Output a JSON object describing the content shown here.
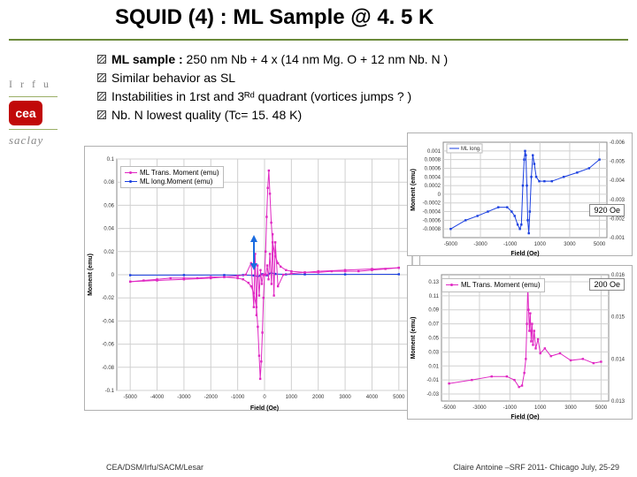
{
  "title": "SQUID (4) : ML Sample @ 4. 5 K",
  "bullets": [
    {
      "bold": "ML sample :",
      "rest": " 250 nm Nb + 4 x (14 nm Mg. O + 12 nm Nb. N )"
    },
    {
      "bold": "",
      "rest": "Similar behavior as SL"
    },
    {
      "bold": "",
      "rest": "Instabilities in 1rst and 3ᴿᵈ quadrant (vortices jumps ? )"
    },
    {
      "bold": "",
      "rest": "Nb. N lowest quality (Tc= 15. 48 K)"
    }
  ],
  "logos": {
    "irfu": "I r f u",
    "cea": "cea",
    "saclay": "saclay"
  },
  "footer": {
    "left": "CEA/DSM/Irfu/SACM/Lesar",
    "right": "Claire Antoine –SRF 2011- Chicago July, 25-29"
  },
  "main_chart": {
    "type": "line",
    "xlabel": "Field (Oe)",
    "ylabel": "Moment (emu)",
    "xlim": [
      -5500,
      5500
    ],
    "ylim": [
      -0.1,
      0.1
    ],
    "xticks": [
      -5000,
      -4000,
      -3000,
      -2000,
      -1000,
      0,
      1000,
      2000,
      3000,
      4000,
      5000
    ],
    "yticks": [
      -0.1,
      -0.08,
      -0.06,
      -0.04,
      -0.02,
      0,
      0.02,
      0.04,
      0.06,
      0.08,
      0.1
    ],
    "grid_color": "#d0d0d0",
    "legend": [
      {
        "label": "ML Trans. Moment (emu)",
        "color": "#e028c3"
      },
      {
        "label": "ML long.Moment (emu)",
        "color": "#1a3fe0"
      }
    ],
    "series": {
      "trans": {
        "color": "#e028c3",
        "marker": "square",
        "marker_size": 2,
        "data_out": [
          [
            -5000,
            -0.006
          ],
          [
            -4500,
            -0.005
          ],
          [
            -4000,
            -0.004
          ],
          [
            -3500,
            -0.003
          ],
          [
            -3000,
            -0.003
          ],
          [
            -2500,
            -0.003
          ],
          [
            -2000,
            -0.002
          ],
          [
            -1500,
            -0.002
          ],
          [
            -1000,
            -0.003
          ],
          [
            -800,
            -0.004
          ],
          [
            -600,
            -0.007
          ],
          [
            -500,
            -0.01
          ],
          [
            -400,
            -0.016
          ],
          [
            -300,
            -0.028
          ],
          [
            -250,
            -0.045
          ],
          [
            -200,
            -0.07
          ],
          [
            -160,
            -0.09
          ],
          [
            -120,
            -0.075
          ],
          [
            -80,
            -0.05
          ],
          [
            -40,
            -0.02
          ],
          [
            0,
            0
          ],
          [
            40,
            0.02
          ],
          [
            80,
            0.05
          ],
          [
            120,
            0.075
          ],
          [
            160,
            0.09
          ],
          [
            200,
            0.07
          ],
          [
            250,
            0.045
          ],
          [
            300,
            0.028
          ],
          [
            400,
            0.016
          ],
          [
            500,
            0.01
          ],
          [
            600,
            0.007
          ],
          [
            800,
            0.004
          ],
          [
            1000,
            0.003
          ],
          [
            1500,
            0.002
          ],
          [
            2000,
            0.002
          ],
          [
            2500,
            0.003
          ],
          [
            3000,
            0.003
          ],
          [
            3500,
            0.003
          ],
          [
            4000,
            0.004
          ],
          [
            4500,
            0.005
          ],
          [
            5000,
            0.006
          ]
        ],
        "data_ret": [
          [
            5000,
            0.006
          ],
          [
            4000,
            0.005
          ],
          [
            3000,
            0.004
          ],
          [
            2000,
            0.003
          ],
          [
            1500,
            0.002
          ],
          [
            1000,
            0.001
          ],
          [
            700,
            0.0
          ],
          [
            500,
            -0.01
          ],
          [
            400,
            0.028
          ],
          [
            350,
            -0.018
          ],
          [
            300,
            0.035
          ],
          [
            260,
            -0.008
          ],
          [
            200,
            0.018
          ],
          [
            150,
            -0.004
          ],
          [
            100,
            0.008
          ],
          [
            50,
            0.0
          ],
          [
            0,
            0.0
          ],
          [
            -50,
            0.0
          ],
          [
            -100,
            -0.008
          ],
          [
            -150,
            0.004
          ],
          [
            -200,
            -0.018
          ],
          [
            -260,
            0.008
          ],
          [
            -300,
            -0.035
          ],
          [
            -350,
            0.018
          ],
          [
            -400,
            -0.028
          ],
          [
            -500,
            0.01
          ],
          [
            -700,
            0.0
          ],
          [
            -1000,
            -0.001
          ],
          [
            -1500,
            -0.002
          ],
          [
            -2000,
            -0.003
          ],
          [
            -3000,
            -0.004
          ],
          [
            -4000,
            -0.005
          ],
          [
            -5000,
            -0.006
          ]
        ]
      },
      "long": {
        "color": "#1a3fe0",
        "marker": "square",
        "marker_size": 2,
        "data": [
          [
            -5000,
            -0.0004
          ],
          [
            -3000,
            -0.0003
          ],
          [
            -1500,
            -0.0003
          ],
          [
            -800,
            -0.0003
          ],
          [
            -400,
            -0.0007
          ],
          [
            -250,
            -0.0015
          ],
          [
            -160,
            -0.0008
          ],
          [
            -80,
            0.0005
          ],
          [
            0,
            0
          ],
          [
            80,
            -0.0005
          ],
          [
            160,
            0.0008
          ],
          [
            250,
            0.0015
          ],
          [
            400,
            0.0007
          ],
          [
            800,
            0.0003
          ],
          [
            1500,
            0.0003
          ],
          [
            3000,
            0.0003
          ],
          [
            5000,
            0.0004
          ]
        ]
      }
    }
  },
  "top_right_chart": {
    "type": "line",
    "xlabel": "Field (Oe)",
    "ylabel": "Moment (emu)",
    "xlim": [
      -5500,
      5500
    ],
    "ylim": [
      -0.001,
      0.0012
    ],
    "xticks": [
      -5000,
      -3000,
      -1000,
      1000,
      3000,
      5000
    ],
    "yticks": [
      -0.0008,
      -0.0006,
      -0.0004,
      -0.0002,
      0,
      0.0002,
      0.0004,
      0.0006,
      0.0008,
      0.001
    ],
    "secondary_yticks": [
      -0.006,
      -0.005,
      -0.004,
      -0.003,
      -0.002,
      -0.001
    ],
    "grid_color": "#d0d0d0",
    "badge": "920 Oe",
    "legend": [
      {
        "label": "ML long.",
        "color": "#1a3fe0"
      }
    ],
    "series": {
      "color": "#1a3fe0",
      "data": [
        [
          -5000,
          -0.0008
        ],
        [
          -4000,
          -0.0006
        ],
        [
          -3200,
          -0.0005
        ],
        [
          -2500,
          -0.0004
        ],
        [
          -1800,
          -0.0003
        ],
        [
          -1200,
          -0.0003
        ],
        [
          -900,
          -0.0004
        ],
        [
          -700,
          -0.0005
        ],
        [
          -500,
          -0.0007
        ],
        [
          -350,
          -0.0008
        ],
        [
          -250,
          -0.0007
        ],
        [
          -150,
          0.0002
        ],
        [
          -60,
          0.0008
        ],
        [
          0,
          0.001
        ],
        [
          50,
          0.0009
        ],
        [
          120,
          0.0002
        ],
        [
          180,
          -0.0006
        ],
        [
          250,
          -0.0009
        ],
        [
          320,
          -0.0004
        ],
        [
          420,
          0.0004
        ],
        [
          520,
          0.0009
        ],
        [
          620,
          0.0007
        ],
        [
          750,
          0.0004
        ],
        [
          950,
          0.0003
        ],
        [
          1300,
          0.0003
        ],
        [
          1800,
          0.0003
        ],
        [
          2600,
          0.0004
        ],
        [
          3500,
          0.0005
        ],
        [
          4300,
          0.0006
        ],
        [
          5000,
          0.0008
        ]
      ]
    }
  },
  "bot_right_chart": {
    "type": "line",
    "xlabel": "Field (Oe)",
    "ylabel": "Moment (emu)",
    "xlim": [
      -5500,
      5500
    ],
    "ylim": [
      -0.04,
      0.14
    ],
    "xticks": [
      -5000,
      -3000,
      -1000,
      1000,
      3000,
      5000
    ],
    "yticks": [
      -0.03,
      -0.01,
      0.01,
      0.03,
      0.05,
      0.07,
      0.09,
      0.11,
      0.13
    ],
    "secondary_yticks": [
      0.016,
      0.015,
      0.014,
      0.013
    ],
    "grid_color": "#d0d0d0",
    "badge": "200 Oe",
    "legend": [
      {
        "label": "ML Trans. Moment (emu)",
        "color": "#e028c3"
      }
    ],
    "series": {
      "color": "#e028c3",
      "data": [
        [
          -5000,
          -0.015
        ],
        [
          -3500,
          -0.01
        ],
        [
          -2200,
          -0.005
        ],
        [
          -1200,
          -0.005
        ],
        [
          -700,
          -0.01
        ],
        [
          -400,
          -0.02
        ],
        [
          -200,
          -0.018
        ],
        [
          -50,
          0.0
        ],
        [
          50,
          0.02
        ],
        [
          120,
          0.07
        ],
        [
          180,
          0.125
        ],
        [
          230,
          0.09
        ],
        [
          280,
          0.06
        ],
        [
          340,
          0.085
        ],
        [
          400,
          0.045
        ],
        [
          460,
          0.07
        ],
        [
          520,
          0.04
        ],
        [
          600,
          0.06
        ],
        [
          700,
          0.035
        ],
        [
          850,
          0.048
        ],
        [
          1000,
          0.028
        ],
        [
          1300,
          0.035
        ],
        [
          1700,
          0.024
        ],
        [
          2300,
          0.028
        ],
        [
          3000,
          0.018
        ],
        [
          3800,
          0.02
        ],
        [
          4500,
          0.014
        ],
        [
          5000,
          0.016
        ]
      ]
    }
  }
}
